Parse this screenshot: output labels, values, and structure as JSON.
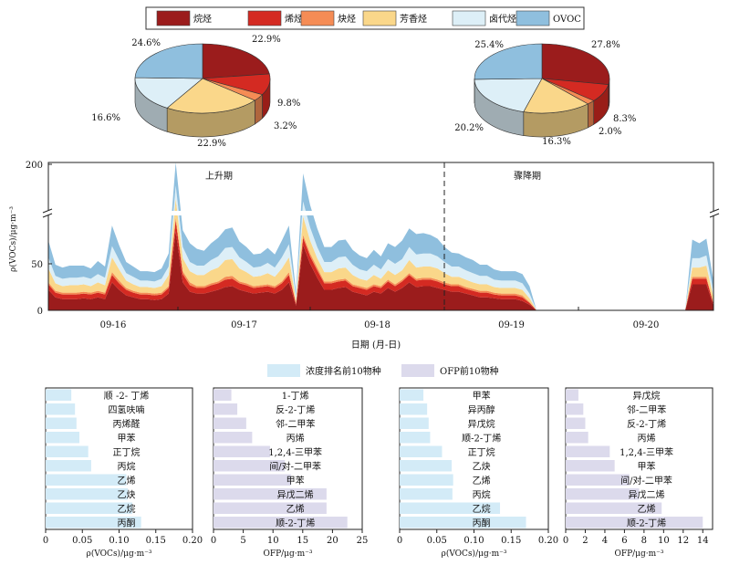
{
  "legend_top": [
    {
      "label": "烷烃",
      "color": "#9b1c1c"
    },
    {
      "label": "烯烃",
      "color": "#d42a22"
    },
    {
      "label": "炔烃",
      "color": "#f58c55"
    },
    {
      "label": "芳香烃",
      "color": "#fad78a"
    },
    {
      "label": "卤代烃",
      "color": "#ddeff7"
    },
    {
      "label": "OVOC",
      "color": "#8fbfde"
    }
  ],
  "chart_data": [
    {
      "type": "pie",
      "subtype": "3d",
      "categories": [
        "烷烃",
        "烯烃",
        "炔烃",
        "芳香烃",
        "卤代烃",
        "OVOC"
      ],
      "values": [
        22.9,
        9.8,
        3.2,
        22.9,
        16.6,
        24.6
      ],
      "labels": [
        "22.9%",
        "9.8%",
        "3.2%",
        "22.9%",
        "16.6%",
        "24.6%"
      ]
    },
    {
      "type": "pie",
      "subtype": "3d",
      "categories": [
        "烷烃",
        "烯烃",
        "炔烃",
        "芳香烃",
        "卤代烃",
        "OVOC"
      ],
      "values": [
        27.8,
        8.3,
        2.0,
        16.3,
        20.2,
        25.4
      ],
      "labels": [
        "27.8%",
        "8.3%",
        "2.0%",
        "16.3%",
        "20.2%",
        "25.4%"
      ]
    },
    {
      "type": "area",
      "stacked": true,
      "ylabel": "ρ(VOCs)/μg·m⁻³",
      "xlabel": "日期 (月-日)",
      "x_ticks": [
        "09-16",
        "09-17",
        "09-18",
        "09-19",
        "09-20"
      ],
      "y_ticks": [
        "0",
        "50",
        "200"
      ],
      "axis_break": true,
      "annotations": [
        "上升期",
        "骤降期"
      ],
      "divider_at": "09-19 00:00",
      "series": [
        {
          "name": "烷烃",
          "values": [
            22,
            14,
            12,
            12,
            12,
            13,
            12,
            14,
            12,
            30,
            22,
            16,
            14,
            12,
            12,
            11,
            12,
            18,
            85,
            30,
            20,
            18,
            18,
            20,
            22,
            25,
            26,
            22,
            20,
            18,
            19,
            20,
            18,
            22,
            30,
            5,
            70,
            50,
            35,
            22,
            22,
            24,
            25,
            20,
            18,
            16,
            20,
            18,
            24,
            20,
            24,
            30,
            25,
            26,
            26,
            24,
            22,
            20,
            20,
            18,
            16,
            14,
            14,
            13,
            12,
            12,
            12,
            10,
            6,
            0,
            0,
            0,
            0,
            0,
            0,
            0,
            0,
            0,
            0,
            0,
            0,
            0,
            0,
            0,
            0,
            0,
            0,
            0,
            0,
            0,
            0,
            28,
            28,
            28,
            5
          ]
        },
        {
          "name": "烯烃",
          "values": [
            6,
            5,
            5,
            5,
            5,
            5,
            5,
            5,
            5,
            8,
            7,
            6,
            5,
            5,
            5,
            5,
            5,
            6,
            12,
            9,
            7,
            6,
            6,
            7,
            7,
            8,
            8,
            7,
            7,
            6,
            6,
            6,
            6,
            7,
            8,
            2,
            8,
            8,
            8,
            7,
            7,
            7,
            7,
            6,
            6,
            6,
            6,
            6,
            7,
            6,
            7,
            8,
            7,
            7,
            7,
            7,
            6,
            6,
            6,
            5,
            5,
            5,
            5,
            4,
            4,
            4,
            4,
            4,
            2,
            0,
            0,
            0,
            0,
            0,
            0,
            0,
            0,
            0,
            0,
            0,
            0,
            0,
            0,
            0,
            0,
            0,
            0,
            0,
            0,
            0,
            0,
            6,
            6,
            6,
            2
          ]
        },
        {
          "name": "炔烃",
          "values": [
            2,
            2,
            2,
            2,
            2,
            2,
            2,
            2,
            2,
            3,
            3,
            2,
            2,
            2,
            2,
            2,
            2,
            2,
            3,
            3,
            3,
            2,
            2,
            2,
            2,
            3,
            3,
            2,
            2,
            2,
            2,
            2,
            2,
            2,
            3,
            1,
            3,
            3,
            3,
            2,
            2,
            2,
            2,
            2,
            2,
            2,
            2,
            2,
            2,
            2,
            2,
            2,
            2,
            2,
            2,
            2,
            2,
            2,
            2,
            2,
            2,
            2,
            2,
            2,
            2,
            2,
            2,
            2,
            1,
            0,
            0,
            0,
            0,
            0,
            0,
            0,
            0,
            0,
            0,
            0,
            0,
            0,
            0,
            0,
            0,
            0,
            0,
            0,
            0,
            0,
            0,
            2,
            2,
            2,
            1
          ]
        },
        {
          "name": "芳香烃",
          "values": [
            15,
            8,
            7,
            8,
            8,
            8,
            7,
            9,
            8,
            16,
            12,
            8,
            7,
            6,
            6,
            6,
            7,
            12,
            20,
            14,
            12,
            12,
            12,
            14,
            15,
            18,
            18,
            14,
            12,
            10,
            10,
            12,
            10,
            14,
            16,
            3,
            20,
            14,
            10,
            10,
            10,
            12,
            12,
            10,
            8,
            8,
            10,
            8,
            10,
            10,
            10,
            14,
            12,
            12,
            12,
            12,
            10,
            8,
            8,
            8,
            7,
            7,
            7,
            6,
            6,
            6,
            6,
            6,
            4,
            0,
            0,
            0,
            0,
            0,
            0,
            0,
            0,
            0,
            0,
            0,
            0,
            0,
            0,
            0,
            0,
            0,
            0,
            0,
            0,
            0,
            0,
            10,
            10,
            12,
            6
          ]
        },
        {
          "name": "卤代烃",
          "values": [
            12,
            8,
            8,
            8,
            8,
            8,
            8,
            9,
            8,
            12,
            10,
            8,
            8,
            7,
            7,
            7,
            8,
            9,
            14,
            12,
            10,
            10,
            10,
            11,
            12,
            13,
            13,
            12,
            11,
            10,
            10,
            11,
            10,
            12,
            14,
            4,
            16,
            14,
            12,
            11,
            11,
            12,
            12,
            11,
            10,
            10,
            11,
            10,
            12,
            12,
            12,
            14,
            14,
            14,
            14,
            13,
            12,
            11,
            11,
            10,
            10,
            9,
            9,
            8,
            8,
            8,
            8,
            7,
            5,
            0,
            0,
            0,
            0,
            0,
            0,
            0,
            0,
            0,
            0,
            0,
            0,
            0,
            0,
            0,
            0,
            0,
            0,
            0,
            0,
            0,
            0,
            10,
            10,
            11,
            6
          ]
        },
        {
          "name": "OVOC",
          "values": [
            18,
            12,
            12,
            13,
            13,
            12,
            11,
            14,
            12,
            22,
            16,
            12,
            11,
            10,
            10,
            10,
            11,
            14,
            30,
            18,
            20,
            18,
            16,
            18,
            20,
            20,
            21,
            17,
            16,
            14,
            14,
            16,
            14,
            18,
            20,
            5,
            30,
            24,
            20,
            16,
            16,
            18,
            18,
            16,
            15,
            14,
            16,
            14,
            17,
            18,
            20,
            20,
            22,
            22,
            20,
            19,
            16,
            15,
            14,
            14,
            14,
            12,
            12,
            11,
            10,
            10,
            10,
            10,
            8,
            0,
            0,
            0,
            0,
            0,
            0,
            0,
            0,
            0,
            0,
            0,
            0,
            0,
            0,
            0,
            0,
            0,
            0,
            0,
            0,
            0,
            0,
            20,
            16,
            18,
            12
          ]
        }
      ]
    },
    {
      "type": "bar",
      "orientation": "horizontal",
      "categories": [
        "顺 -2- 丁烯",
        "四氢呋喃",
        "丙烯醛",
        "甲苯",
        "正丁烷",
        "丙烷",
        "乙烯",
        "乙炔",
        "乙烷",
        "丙酮"
      ],
      "values": [
        0.035,
        0.04,
        0.042,
        0.046,
        0.058,
        0.062,
        0.11,
        0.112,
        0.118,
        0.13
      ],
      "xlabel": "ρ(VOCs)/μg·m⁻³",
      "x_ticks": [
        "0",
        "0.05",
        "0.10",
        "0.15",
        "0.20"
      ],
      "xlim": [
        0,
        0.2
      ],
      "color": "#d3ebf7"
    },
    {
      "type": "bar",
      "orientation": "horizontal",
      "categories": [
        "1-丁烯",
        "反-2-丁烯",
        "邻-二甲苯",
        "丙烯",
        "1,2,4-三甲苯",
        "间/对-二甲苯",
        "甲苯",
        "异戊二烯",
        "乙烯",
        "顺-2-丁烯"
      ],
      "values": [
        3.0,
        4.0,
        5.5,
        6.5,
        9.5,
        12.0,
        13.0,
        19.0,
        19.0,
        22.5
      ],
      "xlabel": "OFP/μg·m⁻³",
      "x_ticks": [
        "0",
        "5",
        "10",
        "15",
        "20",
        "25"
      ],
      "xlim": [
        0,
        25
      ],
      "color": "#dcdaec"
    },
    {
      "type": "bar",
      "orientation": "horizontal",
      "categories": [
        "甲苯",
        "异丙醇",
        "异戊烷",
        "顺-2-丁烯",
        "正丁烷",
        "乙炔",
        "乙烯",
        "丙烷",
        "乙烷",
        "丙酮"
      ],
      "values": [
        0.032,
        0.037,
        0.039,
        0.041,
        0.057,
        0.07,
        0.072,
        0.071,
        0.135,
        0.17
      ],
      "xlabel": "ρ(VOCs)/μg·m⁻³",
      "x_ticks": [
        "0",
        "0.05",
        "0.10",
        "0.15",
        "0.20"
      ],
      "xlim": [
        0,
        0.2
      ],
      "color": "#d3ebf7"
    },
    {
      "type": "bar",
      "orientation": "horizontal",
      "categories": [
        "异戊烷",
        "邻-二甲苯",
        "反-2-丁烯",
        "丙烯",
        "1,2,4-三甲苯",
        "甲苯",
        "间/对-二甲苯",
        "异戊二烯",
        "乙烯",
        "顺-2-丁烯"
      ],
      "values": [
        1.3,
        1.8,
        2.0,
        2.3,
        4.5,
        5.0,
        6.5,
        7.5,
        9.8,
        14.0
      ],
      "xlabel": "OFP/μg·m⁻³",
      "x_ticks": [
        "0",
        "2",
        "4",
        "6",
        "8",
        "10",
        "12",
        "14"
      ],
      "xlim": [
        0,
        15
      ],
      "color": "#dcdaec"
    }
  ],
  "legend_bottom": [
    {
      "label": "浓度排名前10物种",
      "color": "#d3ebf7"
    },
    {
      "label": "OFP前10物种",
      "color": "#dcdaec"
    }
  ]
}
